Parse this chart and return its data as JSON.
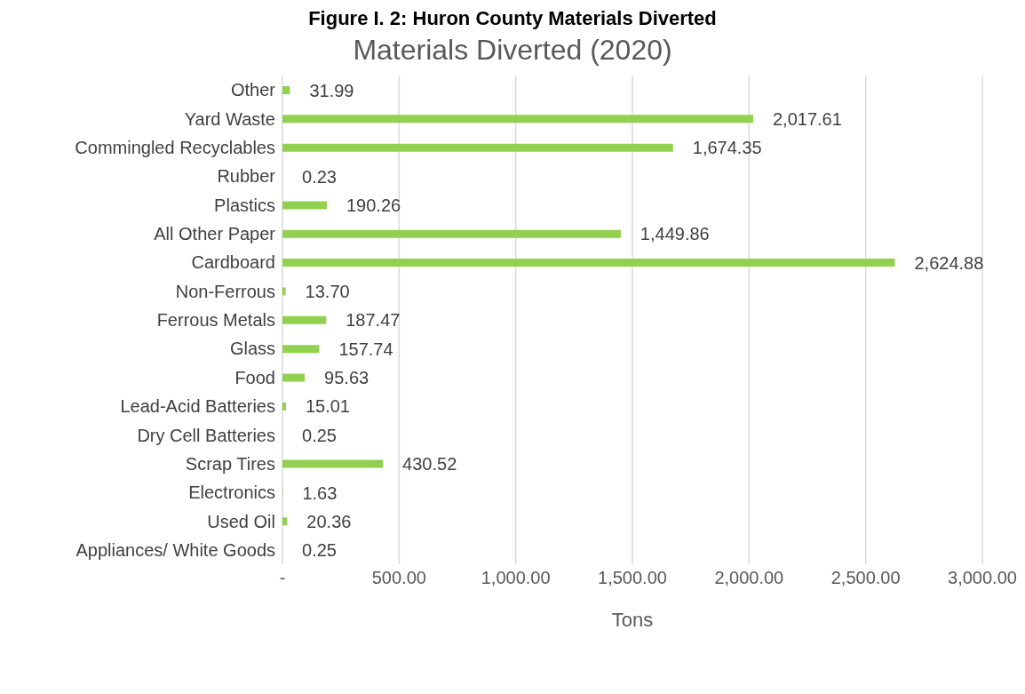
{
  "chart_data": {
    "type": "bar",
    "orientation": "horizontal",
    "title": "Figure I. 2: Huron County Materials Diverted",
    "subtitle": "Materials Diverted (2020)",
    "xlabel": "Tons",
    "categories": [
      "Other",
      "Yard Waste",
      "Commingled Recyclables",
      "Rubber",
      "Plastics",
      "All Other Paper",
      "Cardboard",
      "Non-Ferrous",
      "Ferrous Metals",
      "Glass",
      "Food",
      "Lead-Acid Batteries",
      "Dry Cell Batteries",
      "Scrap Tires",
      "Electronics",
      "Used Oil",
      "Appliances/ White Goods"
    ],
    "values": [
      31.99,
      2017.61,
      1674.35,
      0.23,
      190.26,
      1449.86,
      2624.88,
      13.7,
      187.47,
      157.74,
      95.63,
      15.01,
      0.25,
      430.52,
      1.63,
      20.36,
      0.25
    ],
    "value_labels": [
      "31.99",
      "2,017.61",
      "1,674.35",
      "0.23",
      "190.26",
      "1,449.86",
      "2,624.88",
      "13.70",
      "187.47",
      "157.74",
      "95.63",
      "15.01",
      "0.25",
      "430.52",
      "1.63",
      "20.36",
      "0.25"
    ],
    "color": "#92d050",
    "xlim": [
      0,
      3000
    ],
    "xticks": [
      {
        "value": 0,
        "label": "-"
      },
      {
        "value": 500,
        "label": "500.00"
      },
      {
        "value": 1000,
        "label": "1,000.00"
      },
      {
        "value": 1500,
        "label": "1,500.00"
      },
      {
        "value": 2000,
        "label": "2,000.00"
      },
      {
        "value": 2500,
        "label": "2,500.00"
      },
      {
        "value": 3000,
        "label": "3,000.00"
      }
    ],
    "grid": "x",
    "legend": false
  }
}
